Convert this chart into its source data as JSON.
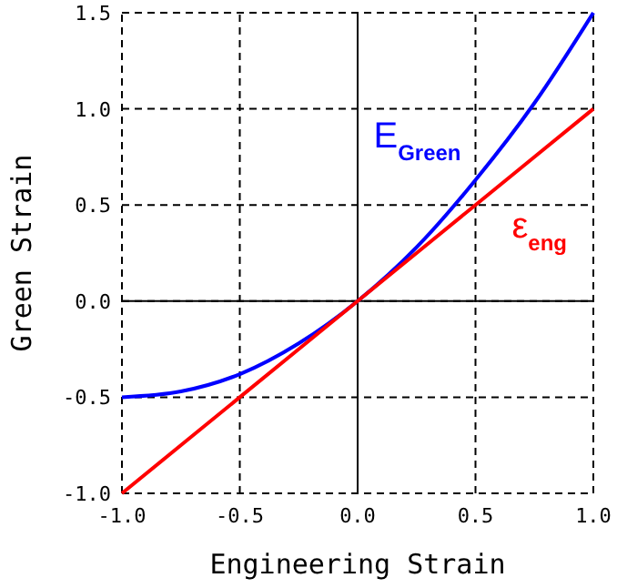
{
  "chart_data": {
    "type": "line",
    "xlabel": "Engineering Strain",
    "ylabel": "Green Strain",
    "series": [
      {
        "name": "E$_{Green}$",
        "color": "#0000ff",
        "x": [
          -1,
          -0.75,
          -0.5,
          -0.25,
          0,
          0.25,
          0.5,
          0.75,
          1
        ],
        "values": [
          -0.5,
          -0.47,
          -0.38,
          -0.22,
          0,
          0.28,
          0.63,
          1.03,
          1.5
        ]
      },
      {
        "name": "ε$_{eng}$",
        "color": "#ff0000",
        "x": [
          -1,
          -0.5,
          0,
          0.5,
          1
        ],
        "values": [
          -1,
          -0.5,
          0,
          0.5,
          1
        ]
      }
    ],
    "xlim": [
      -1,
      1
    ],
    "ylim": [
      -1,
      1.5
    ],
    "xticks": [
      {
        "value": -1,
        "label": "-1.0"
      },
      {
        "value": -0.5,
        "label": "-0.5"
      },
      {
        "value": 0,
        "label": "0.0"
      },
      {
        "value": 0.5,
        "label": "0.5"
      },
      {
        "value": 1,
        "label": "1.0"
      }
    ],
    "yticks": [
      {
        "value": -1,
        "label": "-1.0"
      },
      {
        "value": -0.5,
        "label": "-0.5"
      },
      {
        "value": 0,
        "label": "0.0"
      },
      {
        "value": 0.5,
        "label": "0.5"
      },
      {
        "value": 1,
        "label": "1.0"
      },
      {
        "value": 1.5,
        "label": "1.5"
      }
    ],
    "grid": true,
    "marker": "none",
    "line_style": "solid"
  }
}
